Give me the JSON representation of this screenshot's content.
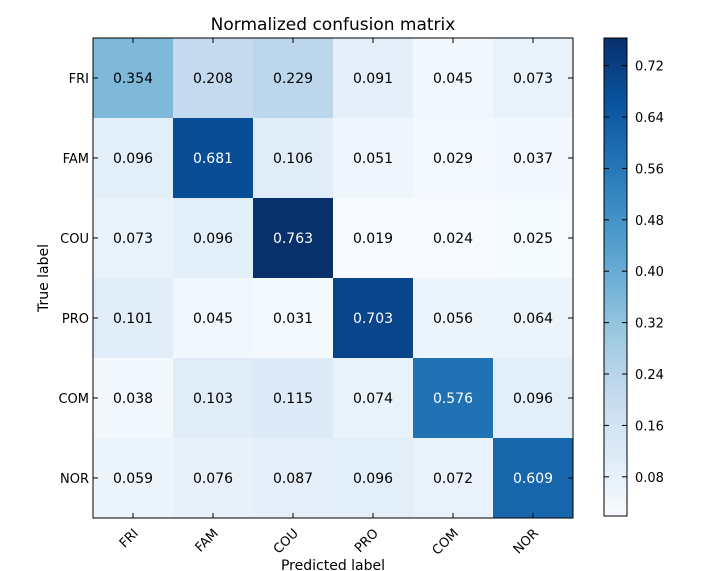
{
  "chart_data": {
    "type": "heatmap",
    "title": "Normalized confusion matrix",
    "xlabel": "Predicted label",
    "ylabel": "True label",
    "x_categories": [
      "FRI",
      "FAM",
      "COU",
      "PRO",
      "COM",
      "NOR"
    ],
    "y_categories": [
      "FRI",
      "FAM",
      "COU",
      "PRO",
      "COM",
      "NOR"
    ],
    "values": [
      [
        0.354,
        0.208,
        0.229,
        0.091,
        0.045,
        0.073
      ],
      [
        0.096,
        0.681,
        0.106,
        0.051,
        0.029,
        0.037
      ],
      [
        0.073,
        0.096,
        0.763,
        0.019,
        0.024,
        0.025
      ],
      [
        0.101,
        0.045,
        0.031,
        0.703,
        0.056,
        0.064
      ],
      [
        0.038,
        0.103,
        0.115,
        0.074,
        0.576,
        0.096
      ],
      [
        0.059,
        0.076,
        0.087,
        0.096,
        0.072,
        0.609
      ]
    ],
    "colorbar": {
      "min": 0.019,
      "max": 0.763,
      "ticks": [
        0.08,
        0.16,
        0.24,
        0.32,
        0.4,
        0.48,
        0.56,
        0.64,
        0.72
      ],
      "tick_labels": [
        "0.08",
        "0.16",
        "0.24",
        "0.32",
        "0.40",
        "0.48",
        "0.56",
        "0.64",
        "0.72"
      ],
      "colormap": "Blues",
      "colors": [
        "#f7fbff",
        "#deebf7",
        "#c6dbef",
        "#9ecae1",
        "#6baed6",
        "#4292c6",
        "#2171b5",
        "#08519c",
        "#08306b"
      ]
    },
    "grid": false
  }
}
